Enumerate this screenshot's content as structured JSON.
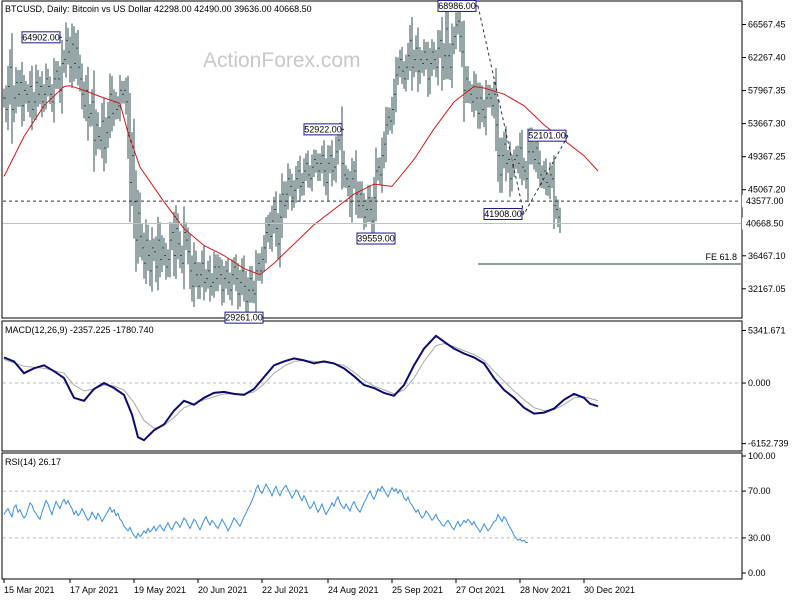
{
  "chart_data": [
    {
      "type": "ohlc",
      "header": "BTCUSD, Daily:  Bitcoin vs US Dollar  42298.00 42490.00 39636.00 40668.50",
      "watermark": "ActionForex.com",
      "ylim": [
        28500,
        69500
      ],
      "y_tick_labels": [
        "66567.45",
        "62267.40",
        "57967.35",
        "53667.30",
        "49367.25",
        "45067.20",
        "36467.10",
        "32167.05"
      ],
      "y_ticks": [
        66567.45,
        62267.4,
        57967.35,
        53667.3,
        49367.25,
        45067.2,
        36467.1,
        32167.05
      ],
      "x_tick_labels": [
        "15 Mar 2021",
        "17 Apr 2021",
        "19 May 2021",
        "20 Jun 2021",
        "22 Jul 2021",
        "24 Aug 2021",
        "25 Sep 2021",
        "27 Oct 2021",
        "28 Nov 2021",
        "30 Dec 2021"
      ],
      "x_tick_bars": [
        0,
        33,
        65,
        97,
        129,
        162,
        194,
        226,
        258,
        290
      ],
      "ohlc_closes": [
        57000,
        55500,
        58500,
        61000,
        55500,
        57000,
        59000,
        57500,
        59000,
        56000,
        58000,
        57500,
        56500,
        58500,
        55500,
        56500,
        59000,
        57500,
        58500,
        56500,
        57500,
        59500,
        58500,
        57500,
        56500,
        59500,
        60500,
        59500,
        58000,
        61500,
        62000,
        64500,
        63000,
        61000,
        64000,
        61500,
        63500,
        61000,
        59500,
        57500,
        56000,
        58000,
        54500,
        55000,
        56500,
        51500,
        53500,
        52000,
        51500,
        54000,
        50500,
        52500,
        54500,
        57500,
        55000,
        56500,
        55500,
        56000,
        58000,
        57500,
        58000,
        56500,
        52500,
        46000,
        49500,
        43500,
        38500,
        42000,
        39000,
        37500,
        35500,
        38500,
        36500,
        34500,
        37500,
        37000,
        35000,
        38500,
        36000,
        37500,
        36500,
        35000,
        36000,
        38500,
        39500,
        36500,
        40000,
        38000,
        36500,
        35500,
        39500,
        38500,
        37000,
        34500,
        32500,
        35500,
        34000,
        32500,
        34000,
        35500,
        33000,
        33500,
        34500,
        32500,
        33000,
        35000,
        33500,
        35000,
        34000,
        32000,
        33500,
        34500,
        33000,
        32000,
        34000,
        35000,
        33500,
        31500,
        33000,
        34500,
        32500,
        30500,
        32000,
        33500,
        32000,
        31500,
        34500,
        35500,
        34500,
        36000,
        37500,
        39500,
        40500,
        39000,
        41000,
        42500,
        40000,
        38000,
        41500,
        44500,
        43000,
        44500,
        46500,
        45500,
        44000,
        45000,
        46500,
        47500,
        45500,
        46000,
        47500,
        48500,
        47000,
        46500,
        48000,
        49000,
        48500,
        47500,
        48500,
        49500,
        47500,
        46000,
        48500,
        49500,
        47500,
        48000,
        50000,
        51500,
        52500,
        48500,
        47000,
        46500,
        45500,
        43500,
        46500,
        47500,
        44500,
        43000,
        44500,
        43000,
        41500,
        42500,
        44000,
        42500,
        41000,
        44000,
        47500,
        48000,
        47000,
        49500,
        51000,
        53500,
        54500,
        54000,
        55500,
        57500,
        60000,
        61000,
        62000,
        60500,
        59500,
        61000,
        62500,
        64500,
        61000,
        62000,
        63500,
        60500,
        62000,
        61500,
        63000,
        62000,
        59500,
        61500,
        63000,
        62000,
        61000,
        63500,
        64500,
        61000,
        62500,
        66000,
        62500,
        61000,
        64000,
        65000,
        66500,
        67000,
        65000,
        63000,
        58000,
        59500,
        58000,
        57500,
        56500,
        58500,
        57000,
        55000,
        57000,
        55500,
        54500,
        57000,
        57500,
        57000,
        56000,
        57500,
        53500,
        49500,
        47000,
        49500,
        51000,
        48500,
        49000,
        46500,
        48000,
        49000,
        49500,
        48500,
        50500,
        48000,
        47500,
        46500,
        50000,
        51500,
        50000,
        49000,
        50500,
        48500,
        47000,
        46500,
        47500,
        46000,
        45500,
        47000,
        46500,
        43000,
        42500,
        41500,
        40668.5
      ],
      "ma_points": [
        [
          0,
          46800
        ],
        [
          10,
          52000
        ],
        [
          20,
          56000
        ],
        [
          30,
          58500
        ],
        [
          33,
          58600
        ],
        [
          40,
          58000
        ],
        [
          50,
          57000
        ],
        [
          58,
          56300
        ],
        [
          62,
          52500
        ],
        [
          68,
          48000
        ],
        [
          80,
          43500
        ],
        [
          90,
          40000
        ],
        [
          100,
          37800
        ],
        [
          110,
          36500
        ],
        [
          120,
          34800
        ],
        [
          128,
          34000
        ],
        [
          135,
          35500
        ],
        [
          145,
          38000
        ],
        [
          155,
          40500
        ],
        [
          165,
          42500
        ],
        [
          175,
          44500
        ],
        [
          185,
          45800
        ],
        [
          194,
          45500
        ],
        [
          205,
          49000
        ],
        [
          215,
          53000
        ],
        [
          225,
          56500
        ],
        [
          235,
          58500
        ],
        [
          240,
          58300
        ],
        [
          250,
          57500
        ],
        [
          260,
          56000
        ],
        [
          270,
          53500
        ],
        [
          280,
          51500
        ],
        [
          290,
          49500
        ],
        [
          297,
          47500
        ]
      ],
      "hline": 43577.0,
      "hline_label": "43577.00",
      "last_price": 40668.5,
      "last_label": "40668.50",
      "fe_level": 35400,
      "fe_label": "FE 61.8",
      "fe_start_bar": 237,
      "fib_lines": [
        [
          237,
          68986
        ],
        [
          260,
          41908
        ],
        [
          282,
          52101
        ]
      ],
      "annotations": [
        {
          "label": "64902.00",
          "bar": 29,
          "value": 64902,
          "side": "left"
        },
        {
          "label": "29261.00",
          "bar": 120,
          "value": 29261,
          "side": "below"
        },
        {
          "label": "52922.00",
          "bar": 170,
          "value": 52922,
          "side": "left"
        },
        {
          "label": "39559.00",
          "bar": 186,
          "value": 39559,
          "side": "below"
        },
        {
          "label": "68986.00",
          "bar": 237,
          "value": 68986,
          "side": "left"
        },
        {
          "label": "41908.00",
          "bar": 260,
          "value": 41908,
          "side": "left"
        },
        {
          "label": "52101.00",
          "bar": 282,
          "value": 52101,
          "side": "left"
        }
      ]
    },
    {
      "type": "line",
      "header": "MACD(12,26,9) -2357.225 -1780.740",
      "ylim": [
        -6800,
        6200
      ],
      "y_tick_labels": [
        "5341.671",
        "0.000",
        "-6152.739"
      ],
      "y_ticks": [
        5341.671,
        0,
        -6152.739
      ],
      "macd_points": [
        [
          0,
          2600
        ],
        [
          5,
          2200
        ],
        [
          10,
          1000
        ],
        [
          15,
          1500
        ],
        [
          20,
          1800
        ],
        [
          25,
          1200
        ],
        [
          30,
          500
        ],
        [
          35,
          -1500
        ],
        [
          40,
          -1800
        ],
        [
          45,
          -600
        ],
        [
          50,
          0
        ],
        [
          55,
          -500
        ],
        [
          60,
          -1200
        ],
        [
          64,
          -3200
        ],
        [
          67,
          -5500
        ],
        [
          70,
          -5800
        ],
        [
          75,
          -4800
        ],
        [
          80,
          -4200
        ],
        [
          85,
          -2800
        ],
        [
          90,
          -1800
        ],
        [
          95,
          -2200
        ],
        [
          100,
          -1500
        ],
        [
          105,
          -1000
        ],
        [
          110,
          -900
        ],
        [
          115,
          -1100
        ],
        [
          120,
          -1200
        ],
        [
          125,
          -600
        ],
        [
          130,
          600
        ],
        [
          135,
          1800
        ],
        [
          140,
          2200
        ],
        [
          145,
          2500
        ],
        [
          150,
          2300
        ],
        [
          155,
          2000
        ],
        [
          160,
          2200
        ],
        [
          165,
          2000
        ],
        [
          170,
          1500
        ],
        [
          175,
          700
        ],
        [
          180,
          -200
        ],
        [
          185,
          -500
        ],
        [
          190,
          -1000
        ],
        [
          195,
          -1300
        ],
        [
          200,
          -200
        ],
        [
          205,
          1800
        ],
        [
          210,
          3500
        ],
        [
          216,
          4800
        ],
        [
          220,
          4200
        ],
        [
          225,
          3500
        ],
        [
          230,
          3000
        ],
        [
          235,
          2600
        ],
        [
          240,
          2000
        ],
        [
          245,
          500
        ],
        [
          250,
          -700
        ],
        [
          255,
          -1500
        ],
        [
          260,
          -2500
        ],
        [
          265,
          -3100
        ],
        [
          270,
          -3000
        ],
        [
          275,
          -2600
        ],
        [
          280,
          -1700
        ],
        [
          285,
          -1100
        ],
        [
          290,
          -1500
        ],
        [
          293,
          -2100
        ],
        [
          297,
          -2357
        ]
      ],
      "signal_points": [
        [
          0,
          2400
        ],
        [
          10,
          1700
        ],
        [
          20,
          1500
        ],
        [
          30,
          1000
        ],
        [
          35,
          -200
        ],
        [
          40,
          -800
        ],
        [
          45,
          -600
        ],
        [
          50,
          -200
        ],
        [
          55,
          -300
        ],
        [
          60,
          -700
        ],
        [
          65,
          -2000
        ],
        [
          70,
          -3800
        ],
        [
          75,
          -4600
        ],
        [
          80,
          -4300
        ],
        [
          85,
          -3500
        ],
        [
          90,
          -2500
        ],
        [
          95,
          -2100
        ],
        [
          100,
          -1700
        ],
        [
          110,
          -1100
        ],
        [
          120,
          -1100
        ],
        [
          125,
          -900
        ],
        [
          130,
          -100
        ],
        [
          135,
          1000
        ],
        [
          140,
          1700
        ],
        [
          145,
          2200
        ],
        [
          150,
          2300
        ],
        [
          160,
          2100
        ],
        [
          170,
          1800
        ],
        [
          175,
          1100
        ],
        [
          180,
          300
        ],
        [
          185,
          -300
        ],
        [
          190,
          -700
        ],
        [
          195,
          -1100
        ],
        [
          200,
          -700
        ],
        [
          205,
          500
        ],
        [
          210,
          2200
        ],
        [
          216,
          3800
        ],
        [
          220,
          4000
        ],
        [
          225,
          3700
        ],
        [
          230,
          3300
        ],
        [
          235,
          2900
        ],
        [
          240,
          2300
        ],
        [
          245,
          1200
        ],
        [
          250,
          200
        ],
        [
          255,
          -800
        ],
        [
          260,
          -1700
        ],
        [
          265,
          -2500
        ],
        [
          270,
          -2800
        ],
        [
          275,
          -2700
        ],
        [
          280,
          -2200
        ],
        [
          285,
          -1500
        ],
        [
          290,
          -1400
        ],
        [
          297,
          -1781
        ]
      ]
    },
    {
      "type": "line",
      "header": "RSI(14) 26.17",
      "ylim": [
        0,
        100
      ],
      "y_tick_labels": [
        "100.00",
        "70.00",
        "30.00",
        "0.00"
      ],
      "y_ticks": [
        100,
        70,
        30,
        0
      ],
      "rsi_values": [
        50,
        53,
        55,
        51,
        48,
        56,
        58,
        52,
        54,
        50,
        47,
        49,
        55,
        60,
        58,
        53,
        51,
        48,
        46,
        52,
        57,
        62,
        59,
        54,
        50,
        56,
        61,
        58,
        55,
        60,
        63,
        59,
        62,
        58,
        55,
        50,
        53,
        49,
        51,
        55,
        52,
        48,
        45,
        47,
        52,
        49,
        46,
        51,
        48,
        44,
        47,
        50,
        53,
        56,
        52,
        54,
        49,
        51,
        46,
        44,
        40,
        38,
        36,
        39,
        35,
        32,
        30,
        34,
        31,
        33,
        36,
        34,
        38,
        35,
        37,
        40,
        36,
        39,
        41,
        38,
        36,
        40,
        43,
        39,
        37,
        41,
        44,
        42,
        39,
        43,
        47,
        45,
        41,
        38,
        42,
        46,
        44,
        40,
        37,
        41,
        45,
        48,
        44,
        41,
        45,
        43,
        40,
        38,
        42,
        46,
        43,
        40,
        36,
        39,
        43,
        47,
        45,
        42,
        40,
        44,
        48,
        51,
        55,
        58,
        62,
        66,
        72,
        75,
        70,
        68,
        72,
        76,
        73,
        70,
        66,
        71,
        74,
        69,
        66,
        70,
        73,
        75,
        71,
        68,
        64,
        67,
        71,
        69,
        65,
        62,
        66,
        63,
        58,
        55,
        57,
        61,
        56,
        52,
        55,
        59,
        54,
        50,
        53,
        56,
        60,
        57,
        62,
        65,
        60,
        57,
        55,
        59,
        56,
        53,
        58,
        61,
        57,
        54,
        52,
        56,
        60,
        63,
        67,
        70,
        66,
        63,
        67,
        72,
        70,
        74,
        71,
        68,
        65,
        69,
        73,
        70,
        72,
        68,
        71,
        69,
        64,
        62,
        65,
        60,
        58,
        55,
        52,
        54,
        50,
        47,
        49,
        53,
        51,
        48,
        45,
        47,
        50,
        46,
        44,
        41,
        40,
        43,
        45,
        42,
        39,
        37,
        41,
        44,
        40,
        42,
        45,
        43,
        46,
        44,
        41,
        44,
        40,
        38,
        35,
        38,
        42,
        39,
        36,
        38,
        41,
        44,
        45,
        50,
        47,
        44,
        48,
        46,
        42,
        39,
        36,
        32,
        30,
        28,
        29,
        27,
        28,
        26,
        26.17
      ],
      "header_value_unused": ""
    }
  ]
}
